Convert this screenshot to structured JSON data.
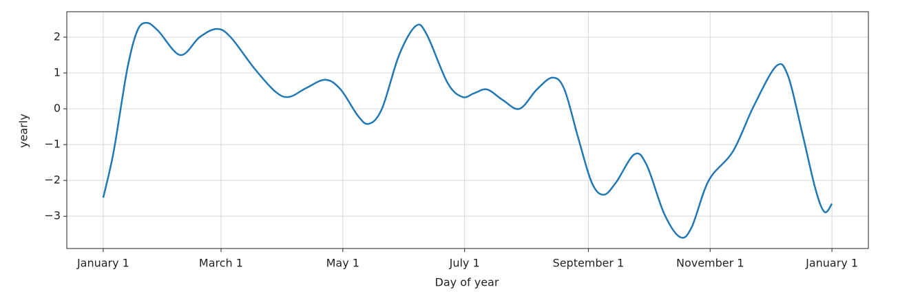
{
  "chart_data": {
    "type": "line",
    "xlabel": "Day of year",
    "ylabel": "yearly",
    "x": [
      0,
      5.2,
      12,
      17,
      21.7,
      27.6,
      38.6,
      48.3,
      56.9,
      63.8,
      75.8,
      86.2,
      93,
      101.7,
      111.3,
      118.9,
      127.5,
      133,
      139.6,
      148.2,
      156.5,
      162,
      172.4,
      179.9,
      186,
      192.3,
      200,
      208.5,
      217.2,
      225.1,
      231,
      237.9,
      244.7,
      250.6,
      256.8,
      266.1,
      272.3,
      280.9,
      288.9,
      294.7,
      303.3,
      315.4,
      325.7,
      337.1,
      343,
      349.9,
      356.8,
      361.3,
      365
    ],
    "series": [
      {
        "name": "yearly",
        "color": "#1f77b4",
        "values": [
          -2.48,
          -1.2,
          1.1,
          2.17,
          2.4,
          2.17,
          1.5,
          2.0,
          2.23,
          2.0,
          1.12,
          0.48,
          0.33,
          0.58,
          0.81,
          0.54,
          -0.19,
          -0.42,
          0,
          1.5,
          2.31,
          2.08,
          0.73,
          0.33,
          0.44,
          0.54,
          0.25,
          0,
          0.54,
          0.87,
          0.54,
          -0.81,
          -2.06,
          -2.4,
          -2.06,
          -1.27,
          -1.58,
          -2.92,
          -3.58,
          -3.31,
          -2.0,
          -1.19,
          0.06,
          1.19,
          0.92,
          -0.62,
          -2.25,
          -2.88,
          -2.65
        ]
      }
    ],
    "xlim": [
      -18.25,
      383.25
    ],
    "xticks": [
      {
        "value": 0,
        "label": "January 1"
      },
      {
        "value": 59,
        "label": "March 1"
      },
      {
        "value": 120,
        "label": "May 1"
      },
      {
        "value": 181,
        "label": "July 1"
      },
      {
        "value": 243,
        "label": "September 1"
      },
      {
        "value": 304,
        "label": "November 1"
      },
      {
        "value": 365,
        "label": "January 1"
      }
    ],
    "ylim": [
      -3.9,
      2.71
    ],
    "yticks": [
      {
        "value": -3,
        "label": "−3"
      },
      {
        "value": -2,
        "label": "−2"
      },
      {
        "value": -1,
        "label": "−1"
      },
      0,
      1,
      2
    ],
    "grid": true
  }
}
